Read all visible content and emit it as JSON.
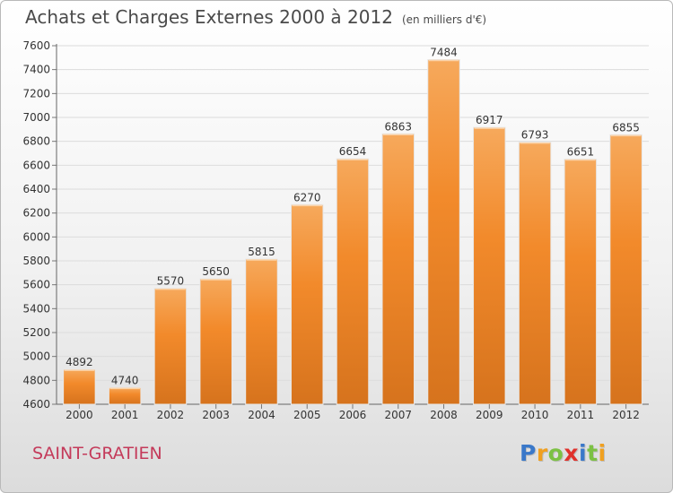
{
  "chart_data": {
    "type": "bar",
    "title": "Achats et Charges Externes 2000 à 2012",
    "unit_note": "(en milliers d'€)",
    "categories": [
      "2000",
      "2001",
      "2002",
      "2003",
      "2004",
      "2005",
      "2006",
      "2007",
      "2008",
      "2009",
      "2010",
      "2011",
      "2012"
    ],
    "values": [
      4892,
      4740,
      5570,
      5650,
      5815,
      6270,
      6654,
      6863,
      7484,
      6917,
      6793,
      6651,
      6855
    ],
    "ylim": [
      4600,
      7600
    ],
    "yticks": [
      4600,
      4800,
      5000,
      5200,
      5400,
      5600,
      5800,
      6000,
      6200,
      6400,
      6600,
      6800,
      7000,
      7200,
      7400,
      7600
    ],
    "grid": true,
    "bar_color": "#f28a2b",
    "bar_color_light": "#f6a95c",
    "bar_color_dark": "#d6731d"
  },
  "footer": {
    "commune": "SAINT-GRATIEN",
    "commune_color": "#c43a5a"
  },
  "logo": {
    "text": "Proxiti",
    "letter_colors": [
      "#3a78c9",
      "#f0a020",
      "#7cc144",
      "#e0312b",
      "#3a78c9",
      "#7cc144",
      "#f0a020"
    ]
  }
}
